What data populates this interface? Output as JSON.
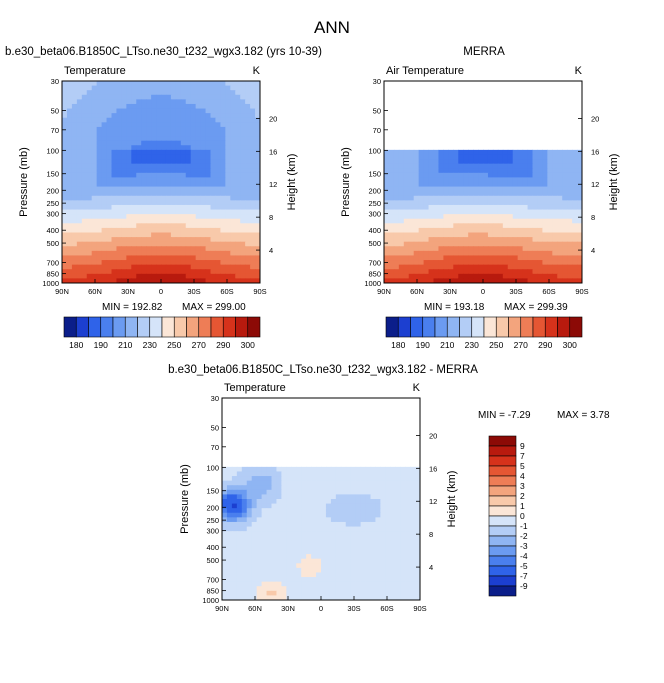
{
  "chart_data": {
    "type": "heatmap",
    "title": "ANN",
    "colors": {
      "abs_scale": [
        "#0b1e8a",
        "#1c3fd0",
        "#2f63e9",
        "#4a7fee",
        "#6b9bf1",
        "#8fb5f3",
        "#b3cdf6",
        "#d5e4f9",
        "#fbe6d7",
        "#f8c9aa",
        "#f3a47d",
        "#ee7d56",
        "#e55633",
        "#d6321b",
        "#b81a0e",
        "#8c0a06"
      ],
      "diff_scale": [
        "#0b1e8a",
        "#1c3fd0",
        "#2f63e9",
        "#4a7fee",
        "#6b9bf1",
        "#8fb5f3",
        "#b3cdf6",
        "#d5e4f9",
        "#fbe6d7",
        "#f8c9aa",
        "#f3a47d",
        "#ee7d56",
        "#e55633",
        "#d6321b",
        "#b81a0e",
        "#8c0a06"
      ],
      "missing": "#ffffff"
    },
    "x_ticks": [
      "90N",
      "60N",
      "30N",
      "0",
      "30S",
      "60S",
      "90S"
    ],
    "lat_values": [
      90,
      60,
      30,
      0,
      -30,
      -60,
      -90
    ],
    "p_ticks": [
      "30",
      "50",
      "70",
      "100",
      "150",
      "200",
      "250",
      "300",
      "400",
      "500",
      "700",
      "850",
      "1000"
    ],
    "p_values": [
      30,
      50,
      70,
      100,
      150,
      200,
      250,
      300,
      400,
      500,
      700,
      850,
      1000
    ],
    "height_ticks": [
      "20",
      "16",
      "12",
      "8",
      "4"
    ],
    "height_values": [
      20,
      16,
      12,
      8,
      4
    ],
    "panels": [
      {
        "id": "model",
        "header": "b.e30_beta06.B1850C_LTso.ne30_t232_wgx3.182 (yrs 10-39)",
        "subtitle_left": "Temperature",
        "subtitle_right": "K",
        "ylabel": "Pressure (mb)",
        "y2label": "Height (km)",
        "min_label": "MIN = 192.82",
        "max_label": "MAX = 299.00",
        "min": 192.82,
        "max": 299.0,
        "top_valid_p": 30
      },
      {
        "id": "obs",
        "header": "MERRA",
        "subtitle_left": "Air Temperature",
        "subtitle_right": "K",
        "ylabel": "Pressure (mb)",
        "y2label": "Height (km)",
        "min_label": "MIN = 193.18",
        "max_label": "MAX = 299.39",
        "min": 193.18,
        "max": 299.39,
        "top_valid_p": 100
      },
      {
        "id": "diff",
        "header": "b.e30_beta06.B1850C_LTso.ne30_t232_wgx3.182 - MERRA",
        "subtitle_left": "Temperature",
        "subtitle_right": "K",
        "ylabel": "Pressure (mb)",
        "y2label": "Height (km)",
        "min_label": "MIN = -7.29",
        "max_label": "MAX =  3.78",
        "min": -7.29,
        "max": 3.78,
        "top_valid_p": 100
      }
    ],
    "abs_colorbar_labels": [
      "180",
      "190",
      "210",
      "230",
      "250",
      "270",
      "290",
      "300"
    ],
    "diff_colorbar_labels": [
      "9",
      "7",
      "5",
      "4",
      "3",
      "2",
      "1",
      "0",
      "-1",
      "-2",
      "-3",
      "-4",
      "-5",
      "-7",
      "-9"
    ]
  }
}
